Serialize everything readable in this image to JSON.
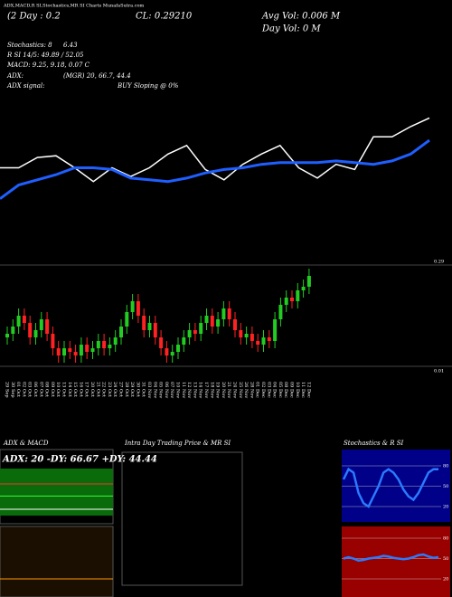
{
  "header": {
    "title": "ADX,MACD,R SI,Stochastics,MR SI Charts MunafaSutra.com",
    "day": "(2 Day : 0.2",
    "close": "CL: 0.29210",
    "avg_vol": "Avg Vol: 0.006   M",
    "day_vol": "Day Vol: 0   M"
  },
  "stats": {
    "stoch": "Stochastics: 8",
    "stoch2": "6.43",
    "rsi": "R SI 14/5: 49.89 / 52.05",
    "macd": "MACD: 9.25, 9.18, 0.07 C",
    "adx": "ADX:",
    "adx_val": "(MGR) 20, 66.7, 44.4",
    "adx_sig": "ADX  signal:",
    "adx_sig_val": "BUY Sloping @ 0%"
  },
  "chart_data": [
    {
      "type": "line",
      "ylim": [
        0,
        100
      ],
      "series": [
        {
          "name": "Stochastics",
          "color": "#ffffff",
          "values": [
            55,
            55,
            61,
            62,
            55,
            47,
            55,
            50,
            55,
            63,
            68,
            54,
            48,
            57,
            63,
            68,
            55,
            49,
            57,
            54,
            73,
            73,
            79,
            84
          ]
        },
        {
          "name": "R SI",
          "color": "#1f5fff",
          "values": [
            37,
            45,
            48,
            51,
            55,
            55,
            54,
            49,
            48,
            47,
            49,
            52,
            54,
            55,
            57,
            58,
            58,
            58,
            59,
            58,
            57,
            59,
            63,
            71
          ]
        }
      ]
    },
    {
      "type": "candlestick",
      "ylim": [
        0.01,
        0.29
      ],
      "yticks": [
        0.29,
        0.01
      ],
      "up_color": "#22cc22",
      "down_color": "#ff2222",
      "categories": [
        "29 Sep",
        "30 Sep",
        "01 Oct",
        "02 Oct",
        "03 Oct",
        "06 Oct",
        "07 Oct",
        "08 Oct",
        "09 Oct",
        "10 Oct",
        "13 Oct",
        "14 Oct",
        "15 Oct",
        "16 Oct",
        "17 Oct",
        "20 Oct",
        "21 Oct",
        "22 Oct",
        "23 Oct",
        "24 Oct",
        "27 Oct",
        "28 Oct",
        "29 Oct",
        "30 Oct",
        "31 Oct",
        "03 Nov",
        "04 Nov",
        "05 Nov",
        "06 Nov",
        "07 Nov",
        "10 Nov",
        "11 Nov",
        "12 Nov",
        "13 Nov",
        "14 Nov",
        "17 Nov",
        "18 Nov",
        "19 Nov",
        "20 Nov",
        "21 Nov",
        "24 Nov",
        "25 Nov",
        "26 Nov",
        "28 Nov",
        "01 Dec",
        "02 Dec",
        "03 Dec",
        "04 Dec",
        "05 Dec",
        "08 Dec",
        "09 Dec",
        "10 Dec",
        "11 Dec",
        "12 Dec"
      ],
      "open": [
        0.09,
        0.1,
        0.12,
        0.15,
        0.13,
        0.09,
        0.11,
        0.14,
        0.1,
        0.06,
        0.04,
        0.06,
        0.05,
        0.04,
        0.07,
        0.05,
        0.06,
        0.08,
        0.06,
        0.07,
        0.09,
        0.12,
        0.16,
        0.19,
        0.15,
        0.11,
        0.13,
        0.09,
        0.06,
        0.04,
        0.05,
        0.07,
        0.09,
        0.11,
        0.1,
        0.13,
        0.15,
        0.12,
        0.14,
        0.17,
        0.14,
        0.11,
        0.09,
        0.1,
        0.08,
        0.07,
        0.09,
        0.08,
        0.14,
        0.18,
        0.2,
        0.19,
        0.22,
        0.23
      ],
      "high": [
        0.12,
        0.14,
        0.17,
        0.17,
        0.15,
        0.13,
        0.16,
        0.16,
        0.12,
        0.08,
        0.08,
        0.08,
        0.07,
        0.09,
        0.09,
        0.08,
        0.1,
        0.1,
        0.09,
        0.11,
        0.14,
        0.18,
        0.21,
        0.21,
        0.17,
        0.15,
        0.15,
        0.11,
        0.08,
        0.07,
        0.09,
        0.11,
        0.13,
        0.13,
        0.15,
        0.17,
        0.17,
        0.16,
        0.19,
        0.19,
        0.16,
        0.13,
        0.12,
        0.12,
        0.1,
        0.11,
        0.11,
        0.16,
        0.2,
        0.22,
        0.22,
        0.24,
        0.25,
        0.28
      ],
      "low": [
        0.07,
        0.08,
        0.1,
        0.11,
        0.07,
        0.07,
        0.09,
        0.08,
        0.04,
        0.02,
        0.02,
        0.03,
        0.02,
        0.02,
        0.03,
        0.03,
        0.04,
        0.04,
        0.04,
        0.05,
        0.07,
        0.1,
        0.14,
        0.13,
        0.09,
        0.09,
        0.07,
        0.04,
        0.02,
        0.02,
        0.03,
        0.05,
        0.07,
        0.08,
        0.08,
        0.11,
        0.1,
        0.1,
        0.12,
        0.12,
        0.09,
        0.07,
        0.07,
        0.06,
        0.05,
        0.05,
        0.06,
        0.06,
        0.12,
        0.16,
        0.17,
        0.17,
        0.2,
        0.21
      ],
      "close": [
        0.1,
        0.12,
        0.15,
        0.13,
        0.09,
        0.11,
        0.14,
        0.1,
        0.06,
        0.04,
        0.06,
        0.05,
        0.04,
        0.07,
        0.05,
        0.06,
        0.08,
        0.06,
        0.07,
        0.09,
        0.12,
        0.16,
        0.19,
        0.15,
        0.11,
        0.13,
        0.09,
        0.06,
        0.04,
        0.05,
        0.07,
        0.09,
        0.11,
        0.1,
        0.13,
        0.15,
        0.12,
        0.14,
        0.17,
        0.14,
        0.11,
        0.09,
        0.1,
        0.08,
        0.07,
        0.09,
        0.08,
        0.14,
        0.18,
        0.2,
        0.19,
        0.22,
        0.23,
        0.26
      ]
    },
    {
      "type": "adx",
      "title": "ADX  & MACD",
      "label": "ADX: 20  -DY: 66.67  +DY: 44.44",
      "ylim": [
        0,
        100
      ],
      "series": [
        {
          "name": "-DY",
          "color": "#ff3333",
          "values": [
            66.67
          ]
        },
        {
          "name": "+DY",
          "color": "#33ff33",
          "values": [
            44.44
          ]
        },
        {
          "name": "ADX",
          "color": "#ffffff",
          "values": [
            20
          ]
        }
      ]
    },
    {
      "type": "intraday",
      "title": "Intra  Day Trading Price  & MR                    SI"
    },
    {
      "type": "stoch",
      "title": "Stochastics  & R                SI",
      "ylim": [
        0,
        100
      ],
      "yticks": [
        80,
        50,
        20
      ],
      "series": [
        {
          "name": "Stochastics",
          "color": "#2a7bff",
          "values": [
            60,
            75,
            70,
            40,
            25,
            20,
            35,
            50,
            70,
            75,
            70,
            60,
            45,
            35,
            30,
            40,
            55,
            70,
            75,
            75
          ]
        },
        {
          "name": "R SI",
          "color": "#2a7bff",
          "values": [
            50,
            52,
            50,
            47,
            48,
            50,
            51,
            52,
            54,
            53,
            51,
            50,
            49,
            50,
            52,
            55,
            56,
            53,
            51,
            52
          ]
        }
      ]
    }
  ]
}
